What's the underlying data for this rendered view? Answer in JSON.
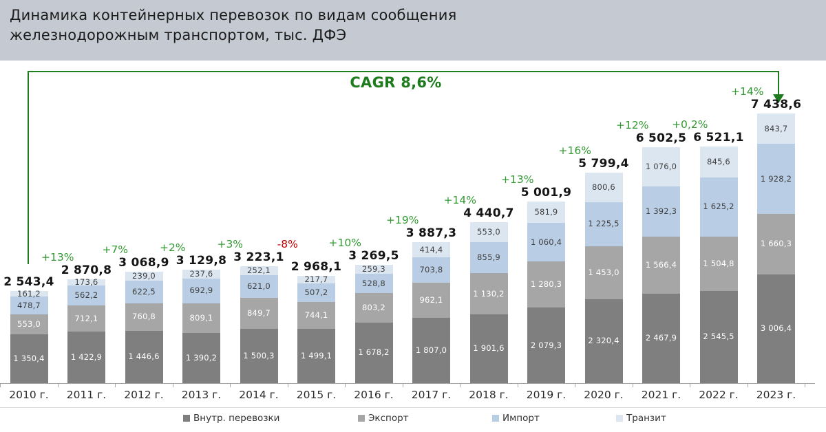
{
  "header": {
    "title_line1": "Динамика контейнерных перевозок по видам сообщения",
    "title_line2": "железнодорожным транспортом, тыс. ДФЭ"
  },
  "cagr_label": "CAGR 8,6%",
  "chart_data": {
    "type": "bar",
    "stacked": true,
    "title": "Динамика контейнерных перевозок по видам сообщения железнодорожным транспортом, тыс. ДФЭ",
    "ylabel": "тыс. ДФЭ",
    "ylim": [
      0,
      7438.6
    ],
    "grid": false,
    "legend_position": "bottom",
    "categories": [
      "2010 г.",
      "2011 г.",
      "2012 г.",
      "2013 г.",
      "2014 г.",
      "2015 г.",
      "2016 г.",
      "2017 г.",
      "2018 г.",
      "2019 г.",
      "2020 г.",
      "2021 г.",
      "2022 г.",
      "2023 г."
    ],
    "series": [
      {
        "name": "Внутр. перевозки",
        "color": "#7f7f7f",
        "label_color": "#ffffff",
        "values": [
          1350.4,
          1422.9,
          1446.6,
          1390.2,
          1500.3,
          1499.1,
          1678.2,
          1807.0,
          1901.6,
          2079.3,
          2320.4,
          2467.9,
          2545.5,
          3006.4
        ]
      },
      {
        "name": "Экспорт",
        "color": "#a6a6a6",
        "label_color": "#ffffff",
        "values": [
          553.0,
          712.1,
          760.8,
          809.1,
          849.7,
          744.1,
          803.2,
          962.1,
          1130.2,
          1280.3,
          1453.0,
          1566.4,
          1504.8,
          1660.3
        ]
      },
      {
        "name": "Импорт",
        "color": "#b9cde4",
        "label_color": "#3f3f3f",
        "values": [
          478.7,
          562.2,
          622.5,
          692.9,
          621.0,
          507.2,
          528.8,
          703.8,
          855.9,
          1060.4,
          1225.5,
          1392.3,
          1625.2,
          1928.2
        ]
      },
      {
        "name": "Транзит",
        "color": "#dce6f1",
        "label_color": "#3f3f3f",
        "values": [
          161.2,
          173.6,
          239.0,
          237.6,
          252.1,
          217.7,
          259.3,
          414.4,
          553.0,
          581.9,
          800.6,
          1076.0,
          845.6,
          843.7
        ]
      }
    ],
    "totals": [
      2543.4,
      2870.8,
      3068.9,
      3129.8,
      3223.1,
      2968.1,
      3269.5,
      3887.3,
      4440.7,
      5001.9,
      5799.4,
      6502.5,
      6521.1,
      7438.6
    ],
    "growth_labels": [
      "+13%",
      "+7%",
      "+2%",
      "+3%",
      "-8%",
      "+10%",
      "+19%",
      "+14%",
      "+13%",
      "+16%",
      "+12%",
      "+0,2%",
      "+14%"
    ],
    "growth_colors": {
      "positive": "#339933",
      "negative": "#c00000"
    },
    "cagr_annotation": "CAGR 8,6%",
    "cagr_color": "#1e7c1e"
  }
}
